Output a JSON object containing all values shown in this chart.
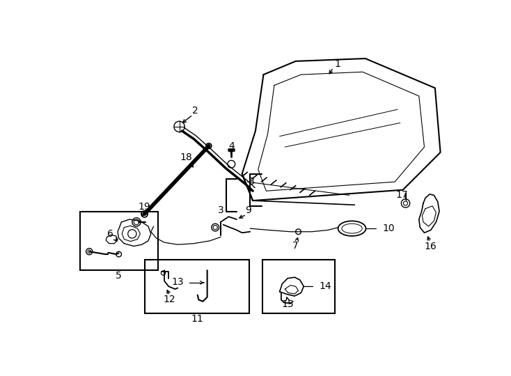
{
  "bg_color": "#ffffff",
  "line_color": "#000000",
  "fig_width": 7.34,
  "fig_height": 5.4,
  "dpi": 100,
  "font_size": 10,
  "lw": 1.0
}
